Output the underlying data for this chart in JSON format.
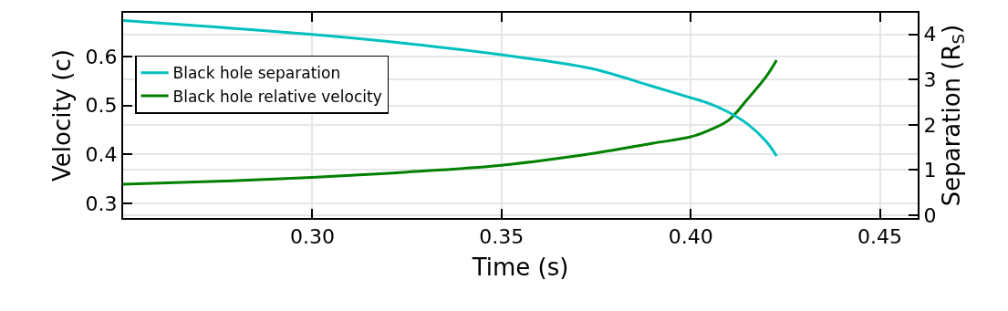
{
  "chart_data": {
    "type": "line",
    "xlabel": "Time (s)",
    "ylabel": "Velocity (c)",
    "y2label": "Separation (R$_{S}$)",
    "xlim": [
      0.25,
      0.46
    ],
    "xticks": [
      {
        "value": 0.3,
        "label": "0.30"
      },
      {
        "value": 0.35,
        "label": "0.35"
      },
      {
        "value": 0.4,
        "label": "0.40"
      },
      {
        "value": 0.45,
        "label": "0.45"
      }
    ],
    "ylim": [
      0.27,
      0.69
    ],
    "yticks": [
      0.3,
      0.4,
      0.5,
      0.6
    ],
    "y2lim": [
      -0.06,
      4.48
    ],
    "y2ticks": [
      0,
      1,
      2,
      3,
      4
    ],
    "grid": true,
    "legend": "left",
    "line_style": "solid",
    "marker": "none",
    "series": [
      {
        "name": "Black hole separation",
        "color": "#00bfbf",
        "axis": "y2",
        "x": [
          0.25,
          0.275,
          0.3,
          0.325,
          0.35,
          0.3736,
          0.39,
          0.4,
          0.405,
          0.41,
          0.415,
          0.42,
          0.4227
        ],
        "values": [
          4.31,
          4.16,
          4.0,
          3.8,
          3.55,
          3.25,
          2.85,
          2.6,
          2.47,
          2.28,
          2.02,
          1.63,
          1.31
        ]
      },
      {
        "name": "Black hole relative velocity",
        "color": "#008000",
        "axis": "y",
        "x": [
          0.25,
          0.275,
          0.3,
          0.325,
          0.35,
          0.375,
          0.39,
          0.4,
          0.405,
          0.41,
          0.415,
          0.42,
          0.4227
        ],
        "values": [
          0.339,
          0.345,
          0.353,
          0.364,
          0.378,
          0.403,
          0.423,
          0.436,
          0.45,
          0.47,
          0.513,
          0.56,
          0.593
        ]
      }
    ]
  }
}
